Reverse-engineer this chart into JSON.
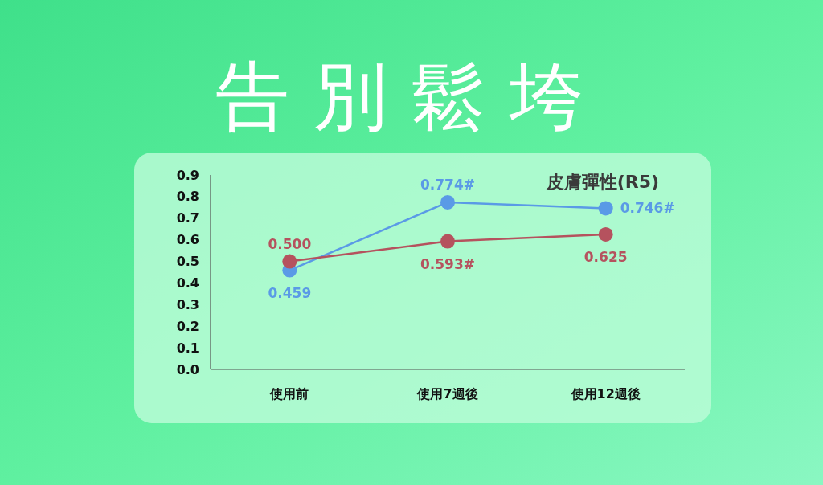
{
  "chart_data": {
    "type": "line",
    "title": "告別鬆垮",
    "subtitle": "皮膚彈性(R5)",
    "categories": [
      "使用前",
      "使用7週後",
      "使用12週後"
    ],
    "series": [
      {
        "color": "#5a9ae6",
        "values": [
          0.459,
          0.774,
          0.746
        ],
        "value_labels": [
          "0.459",
          "0.774#",
          "0.746#"
        ]
      },
      {
        "color": "#b5525e",
        "values": [
          0.5,
          0.593,
          0.625
        ],
        "value_labels": [
          "0.500",
          "0.593#",
          "0.625"
        ]
      }
    ],
    "ylim": [
      0,
      0.9
    ],
    "yticks": [
      {
        "value": 0,
        "label": "0.0"
      },
      {
        "value": 0.1,
        "label": "0.1"
      },
      {
        "value": 0.2,
        "label": "0.2"
      },
      {
        "value": 0.3,
        "label": "0.3"
      },
      {
        "value": 0.4,
        "label": "0.4"
      },
      {
        "value": 0.5,
        "label": "0.5"
      },
      {
        "value": 0.6,
        "label": "0.6"
      },
      {
        "value": 0.7,
        "label": "0.7"
      },
      {
        "value": 0.8,
        "label": "0.8"
      },
      {
        "value": 0.9,
        "label": "0.9"
      }
    ],
    "grid": false,
    "marker": "circle",
    "line_style": "solid"
  }
}
